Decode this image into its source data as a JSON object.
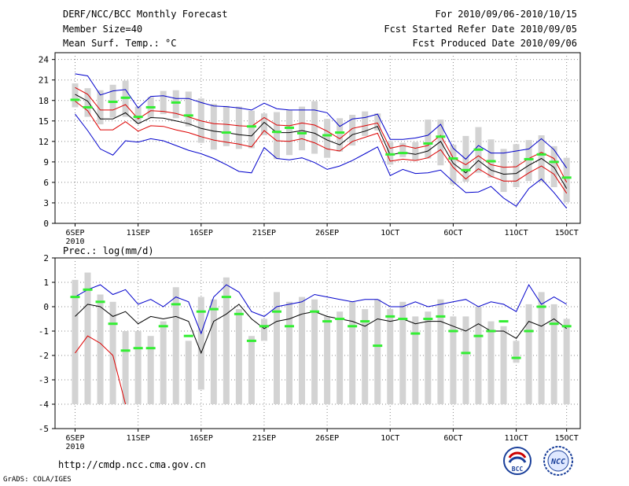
{
  "header": {
    "title": "DERF/NCC/BCC Monthly Forecast",
    "member_size": "Member Size=40",
    "variable": "Mean Surf. Temp.: °C",
    "period": "For 2010/09/06-2010/10/15",
    "refer_date": "Fcst Started Refer Date 2010/09/05",
    "produced_date": "Fcst Produced Date 2010/09/06"
  },
  "precip_label": "Prec.: log(mm/d)",
  "footer": {
    "url": "http://cmdp.ncc.cma.gov.cn",
    "credit": "GrADS: COLA/IGES",
    "logo_left_text": "BCC",
    "logo_right_text": "NCC"
  },
  "colors": {
    "grey_bar": "#d3d3d3",
    "green_mark": "#33ee33",
    "blue_line": "#0000cc",
    "red_line": "#dd0000",
    "black_line": "#000000"
  },
  "x_ticks": [
    {
      "day": 0,
      "label": "6SEP"
    },
    {
      "day": 5,
      "label": "11SEP"
    },
    {
      "day": 10,
      "label": "16SEP"
    },
    {
      "day": 15,
      "label": "21SEP"
    },
    {
      "day": 20,
      "label": "26SEP"
    },
    {
      "day": 25,
      "label": "1OCT"
    },
    {
      "day": 30,
      "label": "6OCT"
    },
    {
      "day": 35,
      "label": "11OCT"
    },
    {
      "day": 39,
      "label": "15OCT"
    }
  ],
  "x_year": "2010",
  "chart_data": [
    {
      "type": "line",
      "title": "Mean Surf. Temp.: °C",
      "ylim": [
        0,
        25
      ],
      "yticks": [
        0,
        3,
        6,
        9,
        12,
        15,
        18,
        21,
        24
      ],
      "x": [
        0,
        1,
        2,
        3,
        4,
        5,
        6,
        7,
        8,
        9,
        10,
        11,
        12,
        13,
        14,
        15,
        16,
        17,
        18,
        19,
        20,
        21,
        22,
        23,
        24,
        25,
        26,
        27,
        28,
        29,
        30,
        31,
        32,
        33,
        34,
        35,
        36,
        37,
        38,
        39
      ],
      "series": [
        {
          "name": "ensemble max",
          "color": "blue",
          "values": [
            21.9,
            21.6,
            18.8,
            19.4,
            19.6,
            16.9,
            18.6,
            18.7,
            18.3,
            18.3,
            17.7,
            17.2,
            17.1,
            16.9,
            16.6,
            17.6,
            16.8,
            16.6,
            16.6,
            16.6,
            16.2,
            14.2,
            15.3,
            15.5,
            16.0,
            12.3,
            12.3,
            12.5,
            12.9,
            14.5,
            11.0,
            9.4,
            11.4,
            10.3,
            10.3,
            10.6,
            10.9,
            12.4,
            10.8,
            8.1
          ]
        },
        {
          "name": "upper red",
          "color": "red",
          "values": [
            19.9,
            18.9,
            16.6,
            16.6,
            17.4,
            15.3,
            16.5,
            16.4,
            16.1,
            15.6,
            15.0,
            14.6,
            14.5,
            14.3,
            14.2,
            15.5,
            14.4,
            14.3,
            14.7,
            14.4,
            13.5,
            12.4,
            13.9,
            14.3,
            14.7,
            11.0,
            11.4,
            11.0,
            11.4,
            12.9,
            9.6,
            8.6,
            9.9,
            8.6,
            8.2,
            8.3,
            9.5,
            10.4,
            9.5,
            6.0
          ]
        },
        {
          "name": "ensemble mean",
          "color": "black",
          "values": [
            18.9,
            17.9,
            15.3,
            15.3,
            16.2,
            14.6,
            15.5,
            15.4,
            15.0,
            14.6,
            13.9,
            13.5,
            13.3,
            13.0,
            12.8,
            14.8,
            13.3,
            13.3,
            13.6,
            13.2,
            12.2,
            11.5,
            13.0,
            13.5,
            14.2,
            10.0,
            10.4,
            10.1,
            10.6,
            12.0,
            8.8,
            7.4,
            9.2,
            7.8,
            7.2,
            7.3,
            8.5,
            9.5,
            8.2,
            5.1
          ]
        },
        {
          "name": "lower red",
          "color": "red",
          "values": [
            17.9,
            16.5,
            13.7,
            13.7,
            14.9,
            13.5,
            14.3,
            14.2,
            13.7,
            13.3,
            12.7,
            12.2,
            11.9,
            11.6,
            11.2,
            13.6,
            12.1,
            12.0,
            12.4,
            11.8,
            10.9,
            10.6,
            12.0,
            12.6,
            13.2,
            9.1,
            9.4,
            9.2,
            9.6,
            10.8,
            8.2,
            6.5,
            8.0,
            6.9,
            6.2,
            6.2,
            7.4,
            8.4,
            7.2,
            4.4
          ]
        },
        {
          "name": "ensemble min",
          "color": "blue",
          "values": [
            16.0,
            13.6,
            10.9,
            10.0,
            12.1,
            11.9,
            12.4,
            12.1,
            11.4,
            10.7,
            10.2,
            9.5,
            8.6,
            7.6,
            7.4,
            11.1,
            9.5,
            9.3,
            9.6,
            8.9,
            7.9,
            8.4,
            9.2,
            10.2,
            11.2,
            7.0,
            7.9,
            7.3,
            7.4,
            7.8,
            6.1,
            4.5,
            4.6,
            5.4,
            3.7,
            2.5,
            5.1,
            6.5,
            4.5,
            2.2
          ]
        },
        {
          "name": "observation",
          "color": "green",
          "marker": "dash",
          "values": [
            18.1,
            17.0,
            null,
            17.8,
            18.4,
            15.6,
            17.0,
            null,
            17.7,
            15.8,
            null,
            null,
            13.3,
            null,
            14.2,
            null,
            13.4,
            14.0,
            13.2,
            null,
            12.9,
            13.3,
            null,
            null,
            null,
            10.1,
            10.3,
            null,
            11.7,
            12.7,
            9.5,
            7.8,
            10.8,
            9.1,
            null,
            null,
            9.4,
            10.1,
            9.0,
            6.7
          ]
        },
        {
          "name": "grey range",
          "color": "grey",
          "style": "bar",
          "low": [
            17.0,
            15.6,
            14.5,
            15.5,
            15.6,
            14.6,
            15.5,
            16.0,
            15.4,
            14.2,
            11.8,
            10.8,
            11.3,
            10.9,
            11.0,
            12.9,
            9.4,
            10.0,
            10.7,
            10.2,
            9.6,
            10.5,
            11.4,
            12.8,
            13.6,
            8.6,
            9.7,
            9.2,
            9.5,
            8.5,
            5.7,
            6.1,
            7.4,
            6.7,
            4.6,
            5.3,
            6.2,
            6.1,
            5.3,
            3.1
          ],
          "high": [
            20.5,
            19.8,
            19.5,
            20.3,
            20.9,
            17.1,
            18.5,
            19.4,
            19.5,
            19.3,
            18.3,
            17.5,
            17.2,
            17.1,
            16.5,
            16.1,
            16.3,
            16.6,
            17.1,
            17.9,
            15.3,
            15.4,
            15.9,
            16.4,
            16.1,
            11.9,
            11.8,
            11.9,
            15.2,
            15.2,
            11.5,
            12.8,
            14.1,
            12.3,
            10.9,
            11.6,
            12.2,
            12.9,
            11.3,
            9.6
          ]
        }
      ]
    },
    {
      "type": "line",
      "title": "Prec.: log(mm/d)",
      "ylim": [
        -5,
        2
      ],
      "yticks": [
        -5,
        -4,
        -3,
        -2,
        -1,
        0,
        1,
        2
      ],
      "x": [
        0,
        1,
        2,
        3,
        4,
        5,
        6,
        7,
        8,
        9,
        10,
        11,
        12,
        13,
        14,
        15,
        16,
        17,
        18,
        19,
        20,
        21,
        22,
        23,
        24,
        25,
        26,
        27,
        28,
        29,
        30,
        31,
        32,
        33,
        34,
        35,
        36,
        37,
        38,
        39
      ],
      "series": [
        {
          "name": "ensemble max",
          "color": "blue",
          "values": [
            0.4,
            0.7,
            0.9,
            0.5,
            0.7,
            0.1,
            0.3,
            0.0,
            0.4,
            0.2,
            -1.1,
            0.4,
            0.9,
            0.6,
            -0.2,
            -0.4,
            0.0,
            0.1,
            0.2,
            0.5,
            0.4,
            0.3,
            0.2,
            0.3,
            0.3,
            0.0,
            0.0,
            0.2,
            0.0,
            0.1,
            0.2,
            0.3,
            0.0,
            0.2,
            0.1,
            -0.2,
            0.9,
            0.1,
            0.4,
            0.1
          ]
        },
        {
          "name": "ensemble mean",
          "color": "black",
          "values": [
            -0.4,
            0.1,
            0.0,
            -0.4,
            -0.2,
            -0.7,
            -0.4,
            -0.5,
            -0.4,
            -0.6,
            -1.9,
            -0.6,
            -0.3,
            0.1,
            -0.5,
            -0.9,
            -0.6,
            -0.5,
            -0.3,
            -0.2,
            -0.4,
            -0.5,
            -0.6,
            -0.8,
            -0.5,
            -0.6,
            -0.5,
            -0.7,
            -0.6,
            -0.6,
            -0.8,
            -1.0,
            -0.7,
            -1.0,
            -1.0,
            -1.3,
            -0.6,
            -0.8,
            -0.5,
            -0.9
          ]
        },
        {
          "name": "ensemble min",
          "color": "red",
          "values": [
            -1.9,
            -1.2,
            -1.5,
            -2.0,
            -4.0,
            null,
            null,
            null,
            null,
            null,
            null,
            null,
            null,
            null,
            null,
            null,
            null,
            null,
            null,
            null,
            null,
            null,
            null,
            null,
            null,
            null,
            null,
            null,
            null,
            null,
            null,
            null,
            null,
            null,
            null,
            null,
            null,
            null,
            null,
            null
          ]
        },
        {
          "name": "observation",
          "color": "green",
          "marker": "dash",
          "values": [
            0.4,
            0.7,
            0.2,
            -0.7,
            -1.8,
            -1.7,
            -1.7,
            -0.8,
            0.1,
            -1.2,
            -0.2,
            -0.1,
            0.4,
            -0.3,
            -1.4,
            -0.8,
            -0.2,
            -0.8,
            null,
            -0.2,
            -0.6,
            -0.5,
            -0.8,
            -0.6,
            -1.6,
            -0.4,
            -0.5,
            -1.1,
            -0.5,
            -0.4,
            -1.0,
            -1.9,
            -1.2,
            -1.0,
            -0.6,
            -2.1,
            -1.0,
            0.0,
            -0.7,
            -0.8
          ]
        },
        {
          "name": "grey range",
          "color": "grey",
          "style": "bar",
          "low": [
            -4.0,
            -4.0,
            -4.0,
            -4.0,
            -4.0,
            -4.0,
            -4.0,
            -4.0,
            -4.0,
            -4.0,
            -3.4,
            -4.0,
            -4.0,
            -4.0,
            -4.0,
            -1.4,
            -4.0,
            -4.0,
            -4.0,
            -4.0,
            -4.0,
            -4.0,
            -4.0,
            -4.0,
            -4.0,
            -4.0,
            -4.0,
            -4.0,
            -4.0,
            -4.0,
            -4.0,
            -4.0,
            -4.0,
            -4.0,
            -4.0,
            -2.3,
            -4.0,
            -4.0,
            -4.0,
            -4.0
          ],
          "high": [
            1.1,
            1.4,
            0.5,
            0.2,
            -1.0,
            -1.0,
            -1.2,
            -0.6,
            0.8,
            -1.4,
            0.4,
            0.3,
            1.2,
            -0.1,
            -1.2,
            -0.5,
            0.6,
            0.2,
            0.4,
            0.3,
            -0.4,
            -0.2,
            0.2,
            -0.1,
            0.3,
            -0.1,
            0.2,
            -0.4,
            -0.2,
            0.3,
            -0.4,
            -0.4,
            0.0,
            -0.6,
            -0.8,
            -1.4,
            0.1,
            0.6,
            0.1,
            -0.5
          ]
        }
      ]
    }
  ]
}
